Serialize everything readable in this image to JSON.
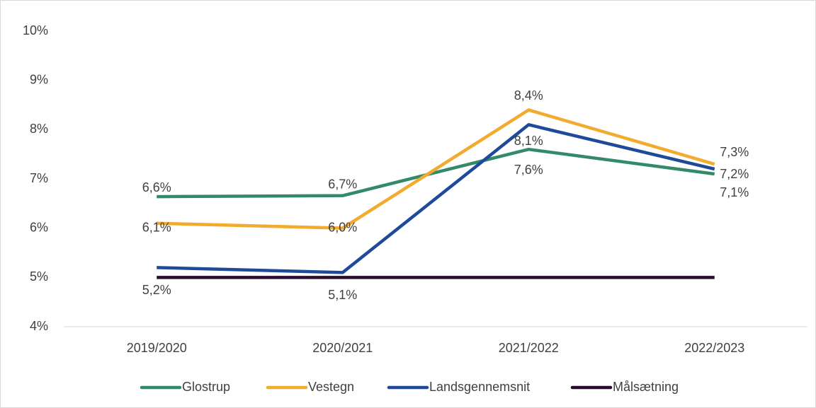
{
  "chart_data": {
    "type": "line",
    "categories": [
      "2019/2020",
      "2020/2021",
      "2021/2022",
      "2022/2023"
    ],
    "series": [
      {
        "name": "Glostrup",
        "color": "#338a68",
        "values": [
          6.64,
          6.66,
          7.6,
          7.1
        ],
        "value_labels": [
          "6,6%",
          "6,7%",
          "7,6%",
          "7,1%"
        ]
      },
      {
        "name": "Vestegn",
        "color": "#f2ab2e",
        "values": [
          6.1,
          6.0,
          8.4,
          7.3
        ],
        "value_labels": [
          "6,1%",
          "6,0%",
          "8,4%",
          "7,3%"
        ]
      },
      {
        "name": "Landsgennemsnit",
        "color": "#1f4a9a",
        "values": [
          5.2,
          5.1,
          8.1,
          7.2
        ],
        "value_labels": [
          "5,2%",
          "5,1%",
          "8,1%",
          "7,2%"
        ]
      },
      {
        "name": "Målsætning",
        "color": "#2b0b2e",
        "values": [
          5,
          5,
          5,
          5
        ]
      }
    ],
    "ylim": [
      4,
      10
    ],
    "yticks": [
      {
        "value": 4,
        "label": "4%"
      },
      {
        "value": 5,
        "label": "5%"
      },
      {
        "value": 6,
        "label": "6%"
      },
      {
        "value": 7,
        "label": "7%"
      },
      {
        "value": 8,
        "label": "8%"
      },
      {
        "value": 9,
        "label": "9%"
      },
      {
        "value": 10,
        "label": "10%"
      }
    ],
    "grid": false,
    "legend": "bottom"
  }
}
